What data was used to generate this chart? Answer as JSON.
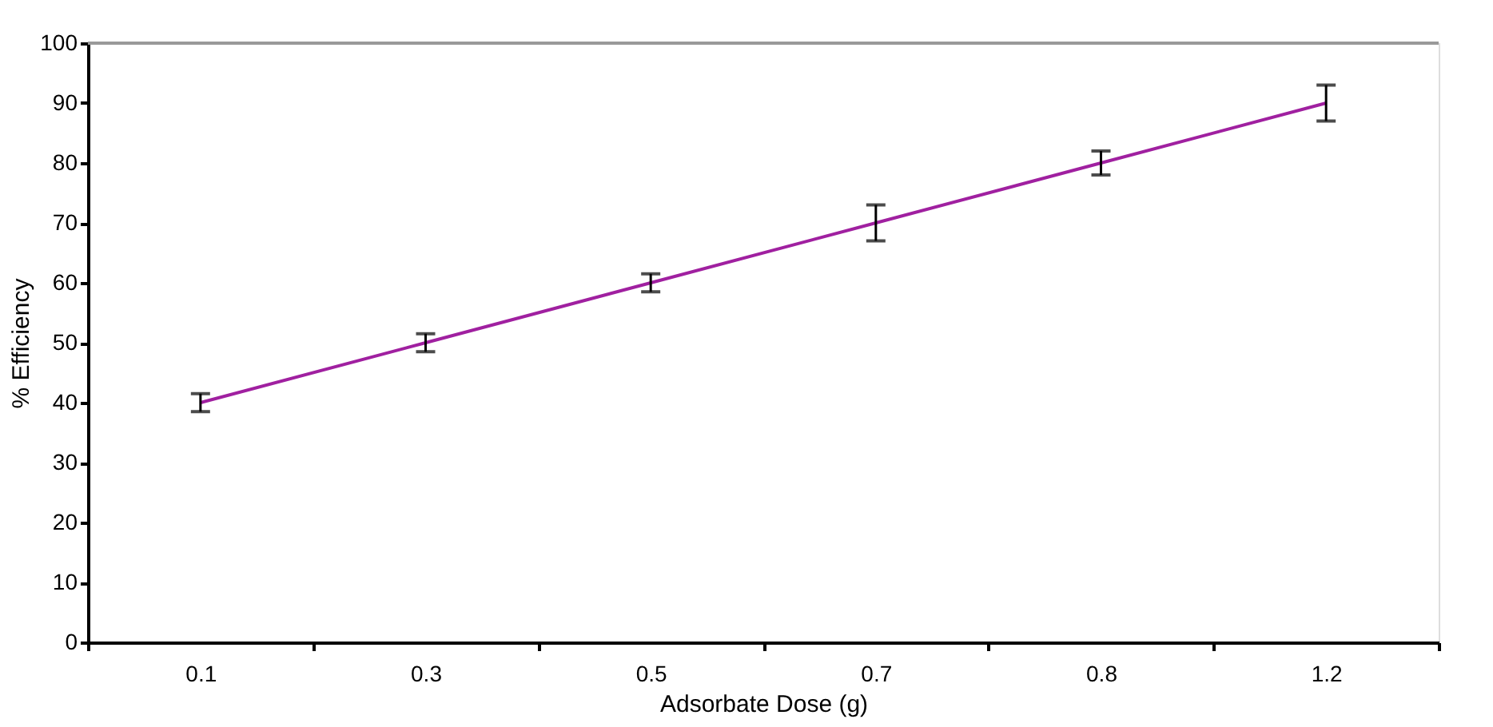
{
  "chart_data": {
    "type": "line",
    "xlabel": "Adsorbate Dose (g)",
    "ylabel": "% Efficiency",
    "categories": [
      "0.1",
      "0.3",
      "0.5",
      "0.7",
      "0.8",
      "1.2"
    ],
    "series": [
      {
        "color": "#a020a0",
        "values": [
          40,
          50,
          60,
          70,
          80,
          90
        ],
        "errors": [
          1.5,
          1.5,
          1.5,
          3,
          2,
          3
        ]
      }
    ],
    "ylim": [
      0,
      100
    ],
    "yticks": [
      0,
      10,
      20,
      30,
      40,
      50,
      60,
      70,
      80,
      90,
      100
    ],
    "grid": false,
    "marker": "none",
    "line_style": "solid"
  }
}
